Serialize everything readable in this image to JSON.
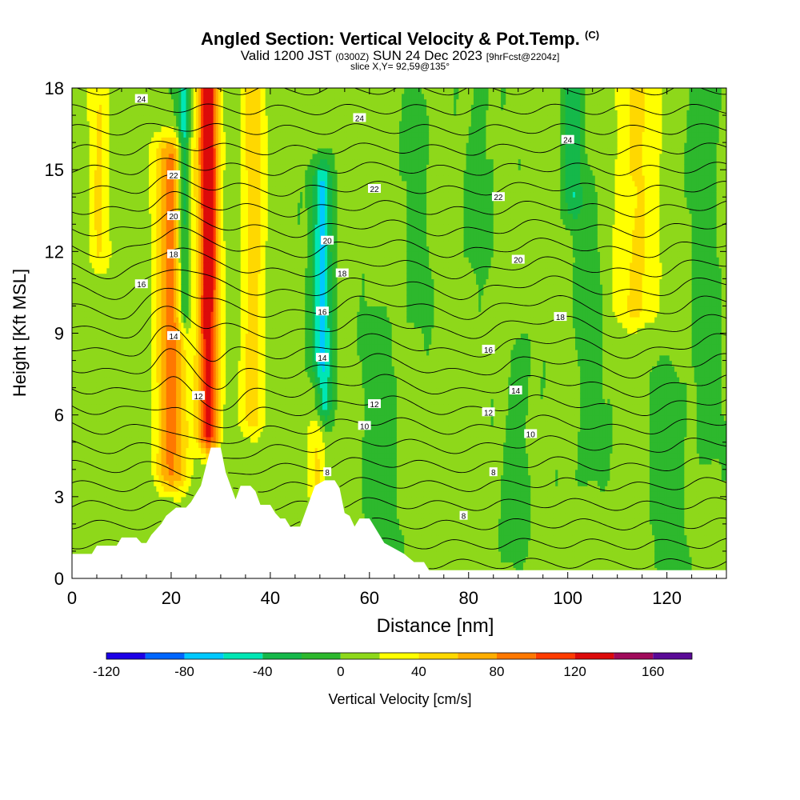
{
  "title": {
    "main": "Angled Section: Vertical Velocity & Pot.Temp.",
    "copyright": "(C)",
    "valid_prefix": "Valid 1200 JST",
    "valid_utc": "(0300Z)",
    "valid_date": "SUN 24 Dec 2023",
    "forecast": "[9hrFcst@2204z]",
    "slice": "slice X,Y= 92,59@135°"
  },
  "colors": {
    "palette": [
      "#1c00e6",
      "#0066ff",
      "#00c8ff",
      "#00e6b4",
      "#15b84a",
      "#2db82d",
      "#8ed81a",
      "#ffff00",
      "#ffd800",
      "#ffad00",
      "#ff7800",
      "#ff3c00",
      "#dc0a0a",
      "#a00a5a",
      "#5a0a96"
    ],
    "terrain": "#ffffff",
    "contour": "#000000"
  },
  "chart_data": {
    "type": "heatmap",
    "xlabel": "Distance [nm]",
    "ylabel": "Height [Kft MSL]",
    "xlim": [
      0,
      132
    ],
    "ylim": [
      0,
      18
    ],
    "x_ticks": [
      0,
      20,
      40,
      60,
      80,
      100,
      120
    ],
    "y_ticks": [
      0,
      3,
      6,
      9,
      12,
      15,
      18
    ],
    "colorbar": {
      "label": "Vertical Velocity [cm/s]",
      "range": [
        -120,
        180
      ],
      "step": 20,
      "tick_values": [
        -120,
        -80,
        -40,
        0,
        40,
        80,
        120,
        160
      ]
    },
    "velocity_features": [
      {
        "x": 27.5,
        "width": 2.2,
        "bottom": 5.5,
        "top": 18,
        "peak_cm_s": 130
      },
      {
        "x": 20.0,
        "width": 3.2,
        "bottom": 4.0,
        "top": 15.5,
        "peak_cm_s": 80
      },
      {
        "x": 36.5,
        "width": 2.5,
        "bottom": 6.0,
        "top": 18,
        "peak_cm_s": 45
      },
      {
        "x": 114,
        "width": 4.5,
        "bottom": 10.0,
        "top": 18,
        "peak_cm_s": 40
      },
      {
        "x": 5.5,
        "width": 2.2,
        "bottom": 12.0,
        "top": 18,
        "peak_cm_s": 35
      },
      {
        "x": 49.5,
        "width": 1.8,
        "bottom": 3.5,
        "top": 6.5,
        "peak_cm_s": 40
      },
      {
        "x": 22.5,
        "width": 1.2,
        "bottom": 10.0,
        "top": 17.5,
        "peak_cm_s": -65
      },
      {
        "x": 50.5,
        "width": 1.9,
        "bottom": 6.5,
        "top": 14.5,
        "peak_cm_s": -70
      },
      {
        "x": 101,
        "width": 1.8,
        "bottom": 14.0,
        "top": 18,
        "peak_cm_s": -40
      },
      {
        "x": 62,
        "width": 3.5,
        "bottom": 0.5,
        "top": 9.0,
        "peak_cm_s": -15
      },
      {
        "x": 90,
        "width": 2.5,
        "bottom": 1.5,
        "top": 8.0,
        "peak_cm_s": -15
      },
      {
        "x": 120,
        "width": 3.5,
        "bottom": 0.5,
        "top": 7.0,
        "peak_cm_s": -15
      },
      {
        "x": 104,
        "width": 3.0,
        "bottom": 4.0,
        "top": 14.0,
        "peak_cm_s": -12
      },
      {
        "x": 128,
        "width": 3.0,
        "bottom": 5.0,
        "top": 18,
        "peak_cm_s": -12
      },
      {
        "x": 70,
        "width": 2.5,
        "bottom": 10.0,
        "top": 18,
        "peak_cm_s": -10
      },
      {
        "x": 83,
        "width": 3.0,
        "bottom": 12.0,
        "top": 18,
        "peak_cm_s": -10
      }
    ],
    "terrain_height_kft": [
      [
        0,
        0.9
      ],
      [
        4,
        0.9
      ],
      [
        5,
        1.2
      ],
      [
        9,
        1.2
      ],
      [
        10,
        1.5
      ],
      [
        13,
        1.5
      ],
      [
        14,
        1.3
      ],
      [
        15,
        1.3
      ],
      [
        16,
        1.6
      ],
      [
        17,
        1.8
      ],
      [
        18,
        2.0
      ],
      [
        19,
        2.3
      ],
      [
        21,
        2.6
      ],
      [
        23,
        2.6
      ],
      [
        24,
        2.8
      ],
      [
        25,
        3.1
      ],
      [
        26,
        3.4
      ],
      [
        27,
        4.1
      ],
      [
        28,
        4.8
      ],
      [
        30,
        4.8
      ],
      [
        31,
        3.9
      ],
      [
        33,
        2.9
      ],
      [
        34,
        3.4
      ],
      [
        36,
        3.4
      ],
      [
        37,
        3.2
      ],
      [
        38,
        2.7
      ],
      [
        40,
        2.7
      ],
      [
        41,
        2.4
      ],
      [
        42,
        2.2
      ],
      [
        43,
        2.2
      ],
      [
        44,
        1.9
      ],
      [
        46,
        1.9
      ],
      [
        47,
        2.4
      ],
      [
        48,
        2.9
      ],
      [
        49,
        3.4
      ],
      [
        51,
        3.6
      ],
      [
        53,
        3.6
      ],
      [
        54,
        3.3
      ],
      [
        55,
        2.4
      ],
      [
        56,
        2.3
      ],
      [
        57,
        1.9
      ],
      [
        58,
        2.2
      ],
      [
        60,
        2.2
      ],
      [
        61,
        1.9
      ],
      [
        62,
        1.6
      ],
      [
        63,
        1.3
      ],
      [
        65,
        1.1
      ],
      [
        67,
        0.9
      ],
      [
        69,
        0.6
      ],
      [
        71,
        0.6
      ],
      [
        72,
        0.3
      ],
      [
        132,
        0.3
      ]
    ],
    "theta_levels_c": [
      0,
      1,
      2,
      3,
      4,
      5,
      6,
      7,
      8,
      9,
      10,
      11,
      12,
      13,
      14,
      15,
      16,
      17,
      18,
      19,
      20,
      21,
      22,
      23,
      24,
      25
    ],
    "theta_labels": [
      {
        "value": "24",
        "x": 14,
        "y": 17.6
      },
      {
        "value": "24",
        "x": 58,
        "y": 16.9
      },
      {
        "value": "24",
        "x": 100,
        "y": 16.1
      },
      {
        "value": "22",
        "x": 20.5,
        "y": 14.8
      },
      {
        "value": "22",
        "x": 61,
        "y": 14.3
      },
      {
        "value": "22",
        "x": 86,
        "y": 14.0
      },
      {
        "value": "20",
        "x": 20.5,
        "y": 13.3
      },
      {
        "value": "20",
        "x": 51.5,
        "y": 12.4
      },
      {
        "value": "20",
        "x": 90,
        "y": 11.7
      },
      {
        "value": "18",
        "x": 20.5,
        "y": 11.9
      },
      {
        "value": "18",
        "x": 54.5,
        "y": 11.2
      },
      {
        "value": "18",
        "x": 98.5,
        "y": 9.6
      },
      {
        "value": "16",
        "x": 14,
        "y": 10.8
      },
      {
        "value": "16",
        "x": 50.5,
        "y": 9.8
      },
      {
        "value": "16",
        "x": 84,
        "y": 8.4
      },
      {
        "value": "14",
        "x": 20.5,
        "y": 8.9
      },
      {
        "value": "14",
        "x": 50.5,
        "y": 8.1
      },
      {
        "value": "14",
        "x": 89.5,
        "y": 6.9
      },
      {
        "value": "12",
        "x": 25.5,
        "y": 6.7
      },
      {
        "value": "12",
        "x": 61,
        "y": 6.4
      },
      {
        "value": "12",
        "x": 84,
        "y": 6.1
      },
      {
        "value": "10",
        "x": 59,
        "y": 5.6
      },
      {
        "value": "10",
        "x": 92.5,
        "y": 5.3
      },
      {
        "value": "8",
        "x": 51.5,
        "y": 3.9
      },
      {
        "value": "8",
        "x": 85,
        "y": 3.9
      },
      {
        "value": "8",
        "x": 79,
        "y": 2.3
      }
    ]
  }
}
